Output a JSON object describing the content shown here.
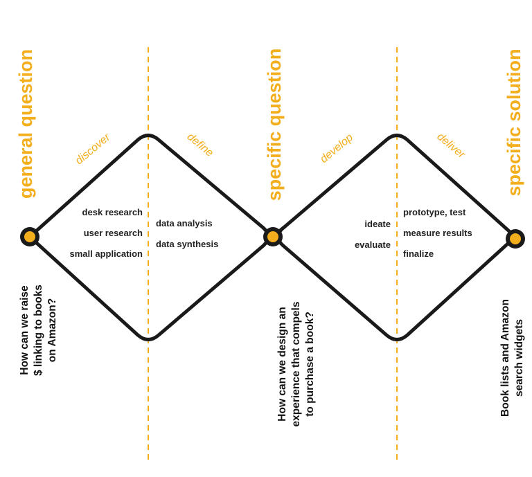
{
  "colors": {
    "accent": "#f2ae1c",
    "outline": "#1a1a1a",
    "text": "#111111",
    "divider": "#f2ae1c"
  },
  "headings": {
    "general_question": "general question",
    "specific_question": "specific question",
    "specific_solution": "specific solution"
  },
  "phases": {
    "discover": "discover",
    "define": "define",
    "develop": "develop",
    "deliver": "deliver"
  },
  "activities": {
    "discover": [
      "desk research",
      "user research",
      "small application"
    ],
    "define": [
      "data analysis",
      "data synthesis"
    ],
    "develop": [
      "ideate",
      "evaluate"
    ],
    "deliver": [
      "prototype, test",
      "measure results",
      "finalize"
    ]
  },
  "questions": {
    "start": [
      "How can we raise",
      "$ linking to books",
      "on Amazon?"
    ],
    "middle": [
      "How can we design an",
      "experience that compels",
      "to purchase a book?"
    ],
    "end": [
      "Book lists and Amazon",
      "search widgets"
    ]
  }
}
